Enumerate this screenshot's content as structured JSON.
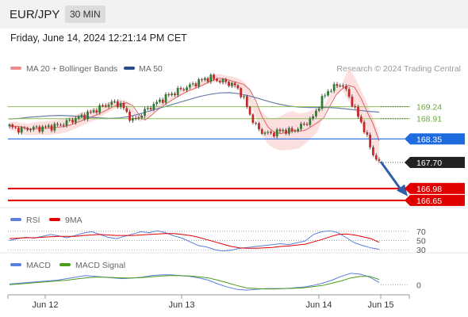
{
  "header": {
    "pair": "EUR/JPY",
    "timeframe": "30 MIN",
    "datetime": "Friday, June 14, 2024 12:21:14 PM CET"
  },
  "legend": {
    "ma20": "MA 20 + Bollinger Bands",
    "ma50": "MA 50",
    "credit": "Research © 2024 Trading Central"
  },
  "rsi_legend": {
    "rsi": "RSI",
    "ma": "9MA"
  },
  "macd_legend": {
    "macd": "MACD",
    "signal": "MACD Signal"
  },
  "colors": {
    "ma20": "#e06060",
    "ma50": "#2a4a8a",
    "bands": "#fbd5d5",
    "bullish": "#2e7d32",
    "bearish": "#c62828",
    "level_blue": "#1e6be0",
    "level_red": "#e00000",
    "level_green": "#8cbf5a",
    "rsi": "#5b7fde",
    "rsi_ma": "#e00000",
    "macd": "#5b7fde",
    "macd_signal": "#4a9c1a",
    "arrow": "#2f5fa8"
  },
  "chart_data": [
    {
      "type": "candlestick",
      "title": "EUR/JPY 30 MIN",
      "x_tick_labels": [
        "Jun 12",
        "Jun 13",
        "Jun 14",
        "Jun 15"
      ],
      "y_range": [
        166.45,
        170.0
      ],
      "levels": [
        {
          "value": 169.24,
          "label": "169.24",
          "kind": "resistance"
        },
        {
          "value": 168.91,
          "label": "168.91",
          "kind": "resistance"
        },
        {
          "value": 168.35,
          "label": "168.35",
          "kind": "pivot"
        },
        {
          "value": 167.7,
          "label": "167.70",
          "kind": "last_price"
        },
        {
          "value": 166.98,
          "label": "166.98",
          "kind": "support"
        },
        {
          "value": 166.65,
          "label": "166.65",
          "kind": "support"
        }
      ],
      "close_path": [
        168.7,
        168.63,
        168.61,
        168.63,
        168.65,
        168.64,
        168.66,
        168.68,
        168.7,
        168.74,
        168.8,
        168.86,
        168.92,
        168.98,
        169.04,
        169.12,
        169.2,
        169.28,
        169.33,
        169.35,
        169.28,
        169.05,
        168.85,
        168.95,
        169.1,
        169.22,
        169.32,
        169.42,
        169.52,
        169.6,
        169.68,
        169.74,
        169.8,
        169.88,
        169.95,
        170.02,
        170.04,
        169.98,
        169.94,
        169.9,
        169.85,
        169.7,
        169.4,
        169.0,
        168.7,
        168.55,
        168.5,
        168.5,
        168.55,
        168.6,
        168.55,
        168.6,
        168.7,
        168.8,
        168.9,
        169.2,
        169.5,
        169.7,
        169.78,
        169.88,
        169.72,
        169.4,
        169.05,
        168.75,
        168.3,
        167.9,
        167.68
      ],
      "ma50_path": [
        168.9,
        168.92,
        168.95,
        168.97,
        168.99,
        169.0,
        168.99,
        168.97,
        168.95,
        168.93,
        168.92,
        168.93,
        168.97,
        169.04,
        169.12,
        169.2,
        169.28,
        169.36,
        169.44,
        169.52,
        169.58,
        169.62,
        169.63,
        169.6,
        169.54,
        169.46,
        169.38,
        169.31,
        169.26,
        169.23,
        169.22,
        169.22,
        169.22,
        169.2,
        169.17,
        169.14,
        169.11,
        169.09
      ],
      "ma50_label": "MA 50"
    },
    {
      "type": "line",
      "title": "RSI",
      "series": [
        {
          "name": "RSI",
          "values": [
            50,
            54,
            57,
            55,
            59,
            63,
            60,
            56,
            61,
            66,
            69,
            63,
            57,
            54,
            59,
            64,
            69,
            67,
            71,
            67,
            60,
            55,
            47,
            39,
            36,
            30,
            27,
            29,
            33,
            35,
            37,
            39,
            41,
            43,
            41,
            45,
            49,
            63,
            69,
            71,
            67,
            56,
            45,
            39,
            34,
            31
          ]
        },
        {
          "name": "9MA",
          "values": [
            54,
            55,
            56,
            56,
            57,
            58,
            59,
            59,
            59,
            61,
            62,
            63,
            62,
            61,
            61,
            61,
            62,
            63,
            64,
            65,
            65,
            63,
            61,
            57,
            52,
            47,
            42,
            37,
            34,
            33,
            33,
            34,
            35,
            37,
            38,
            40,
            42,
            47,
            52,
            58,
            63,
            64,
            62,
            58,
            54,
            46
          ]
        }
      ],
      "levels": [
        70,
        50,
        30
      ],
      "y_range": [
        25,
        80
      ]
    },
    {
      "type": "line",
      "title": "MACD",
      "series": [
        {
          "name": "MACD",
          "values": [
            0.02,
            0.04,
            0.06,
            0.08,
            0.1,
            0.12,
            0.16,
            0.2,
            0.24,
            0.22,
            0.2,
            0.18,
            0.16,
            0.18,
            0.2,
            0.24,
            0.26,
            0.26,
            0.24,
            0.22,
            0.18,
            0.12,
            0.02,
            -0.06,
            -0.12,
            -0.14,
            -0.12,
            -0.1,
            -0.1,
            -0.1,
            -0.08,
            -0.06,
            -0.02,
            0.04,
            0.12,
            0.22,
            0.3,
            0.28,
            0.2,
            0.06
          ]
        },
        {
          "name": "MACD Signal",
          "values": [
            0.0,
            0.02,
            0.04,
            0.06,
            0.08,
            0.1,
            0.12,
            0.15,
            0.18,
            0.2,
            0.2,
            0.19,
            0.18,
            0.18,
            0.19,
            0.21,
            0.23,
            0.24,
            0.24,
            0.23,
            0.21,
            0.18,
            0.12,
            0.05,
            -0.02,
            -0.08,
            -0.1,
            -0.11,
            -0.11,
            -0.1,
            -0.09,
            -0.08,
            -0.05,
            -0.02,
            0.04,
            0.1,
            0.18,
            0.22,
            0.22,
            0.14
          ]
        }
      ],
      "levels": [
        0
      ],
      "y_range": [
        -0.18,
        0.36
      ]
    }
  ]
}
